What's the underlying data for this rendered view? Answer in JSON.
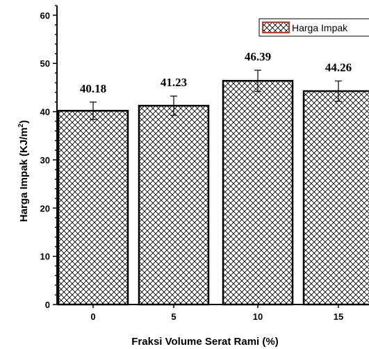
{
  "chart_data": {
    "type": "bar",
    "categories": [
      "0",
      "5",
      "10",
      "15"
    ],
    "values": [
      40.18,
      41.23,
      46.39,
      44.26
    ],
    "errors": [
      1.8,
      2.0,
      2.2,
      2.1
    ],
    "data_labels": [
      "40.18",
      "41.23",
      "46.39",
      "44.26"
    ],
    "series": [
      {
        "name": "Harga Impak",
        "values": [
          40.18,
          41.23,
          46.39,
          44.26
        ]
      }
    ],
    "title": "",
    "xlabel": "Fraksi Volume Serat Rami (%)",
    "ylabel_main": "Harga Impak (KJ/m",
    "ylabel_sup": "2",
    "ylabel_end": ")",
    "ylim": [
      0,
      62
    ],
    "yticks": [
      0,
      10,
      20,
      30,
      40,
      50,
      60
    ],
    "grid": false,
    "legend_position": "top-right",
    "bar_fill": "crosshatch",
    "bar_color": "#000000",
    "legend_border_color": "#c0392b"
  }
}
